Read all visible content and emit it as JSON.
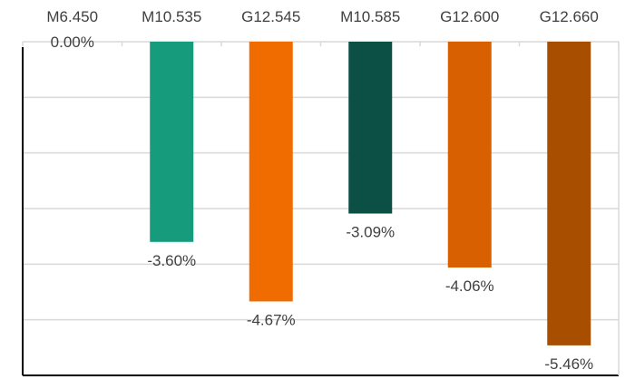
{
  "chart_data": {
    "type": "bar",
    "title": "",
    "xlabel": "",
    "ylabel": "",
    "categories": [
      "M6.450",
      "M10.535",
      "G12.545",
      "M10.585",
      "G12.600",
      "G12.660"
    ],
    "values": [
      0.0,
      -3.6,
      -4.67,
      -3.09,
      -4.06,
      -5.46
    ],
    "data_labels": [
      "0.00%",
      "-3.60%",
      "-4.67%",
      "-3.09%",
      "-4.06%",
      "-5.46%"
    ],
    "colors": [
      "#169C7C",
      "#169C7C",
      "#F06C00",
      "#0C4F44",
      "#D86000",
      "#A84E00"
    ],
    "ylim": [
      -6,
      0
    ],
    "y_unit": "%",
    "grid": true,
    "category_axis_position": "top",
    "legend": "none"
  }
}
